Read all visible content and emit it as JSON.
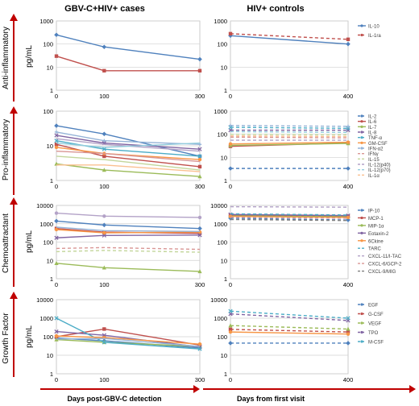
{
  "figure": {
    "left_title": "GBV-C+HIV+ cases",
    "right_title": "HIV+ controls",
    "left_xlabel": "Days post-GBV-C detection",
    "right_xlabel": "Days from first visit",
    "y_unit": "pg/mL"
  },
  "chart_data": [
    {
      "type": "line",
      "row": "Anti-inflammatory",
      "column": "GBV-C+HIV+ cases",
      "yscale": "log",
      "ylim": [
        1,
        1000
      ],
      "yticks": [
        "1",
        "10",
        "100",
        "1000"
      ],
      "x": [
        0,
        100,
        300
      ],
      "xticks": [
        "0",
        "100",
        "300"
      ],
      "series": [
        {
          "name": "IL-10",
          "color": "#4f81bd",
          "marker": "diamond",
          "dashed": false,
          "values": [
            250,
            75,
            22
          ]
        },
        {
          "name": "IL-1ra",
          "color": "#c0504d",
          "marker": "square",
          "dashed": false,
          "values": [
            30,
            7,
            7
          ]
        }
      ]
    },
    {
      "type": "line",
      "row": "Anti-inflammatory",
      "column": "HIV+ controls",
      "yscale": "log",
      "ylim": [
        1,
        1000
      ],
      "yticks": [
        "1",
        "10",
        "100",
        "1000"
      ],
      "x": [
        0,
        400
      ],
      "xticks": [
        "0",
        "400"
      ],
      "series": [
        {
          "name": "IL-10",
          "color": "#4f81bd",
          "marker": "diamond",
          "dashed": false,
          "values": [
            230,
            100
          ]
        },
        {
          "name": "IL-1ra",
          "color": "#c0504d",
          "marker": "square",
          "dashed": true,
          "values": [
            280,
            160
          ]
        }
      ]
    },
    {
      "type": "line",
      "row": "Pro-inflammatory",
      "column": "GBV-C+HIV+ cases",
      "yscale": "log",
      "ylim": [
        1,
        100
      ],
      "yticks": [
        "1",
        "10",
        "100"
      ],
      "x": [
        0,
        100,
        300
      ],
      "xticks": [
        "0",
        "100",
        "300"
      ],
      "series": [
        {
          "name": "IL-2",
          "color": "#4f81bd",
          "marker": "diamond",
          "dashed": false,
          "values": [
            38,
            22,
            5
          ]
        },
        {
          "name": "IL-6",
          "color": "#c0504d",
          "marker": "square",
          "dashed": false,
          "values": [
            11,
            5,
            2.5
          ]
        },
        {
          "name": "IL-7",
          "color": "#9bbb59",
          "marker": "triangle",
          "dashed": false,
          "values": [
            3,
            2,
            1.3
          ]
        },
        {
          "name": "IL-8",
          "color": "#8064a2",
          "marker": "x",
          "dashed": false,
          "values": [
            20,
            12,
            8
          ]
        },
        {
          "name": "TNF-α",
          "color": "#4bacc6",
          "marker": "x",
          "dashed": false,
          "values": [
            14,
            8,
            5
          ]
        },
        {
          "name": "GM-CSF",
          "color": "#f79646",
          "marker": "circle",
          "dashed": false,
          "values": [
            9,
            6,
            4
          ]
        },
        {
          "name": "IFN-α2",
          "color": "#95b3d7",
          "marker": "plus",
          "dashed": false,
          "values": [
            25,
            14,
            11
          ]
        },
        {
          "name": "IFNγ",
          "color": "#d99694",
          "marker": "none",
          "dashed": false,
          "values": [
            7,
            6,
            3.5
          ]
        },
        {
          "name": "IL-15",
          "color": "#c3d69b",
          "marker": "none",
          "dashed": false,
          "values": [
            5,
            4,
            2
          ]
        },
        {
          "name": "IL-12(p40)",
          "color": "#b3a2c7",
          "marker": "none",
          "dashed": false,
          "values": [
            16,
            11,
            7
          ]
        },
        {
          "name": "IL-12(p70)",
          "color": "#93cddd",
          "marker": "none",
          "dashed": false,
          "values": [
            12,
            9,
            12
          ]
        },
        {
          "name": "IL-1α",
          "color": "#fac090",
          "marker": "none",
          "dashed": false,
          "values": [
            2.8,
            2.8,
            1.8
          ]
        }
      ]
    },
    {
      "type": "line",
      "row": "Pro-inflammatory",
      "column": "HIV+ controls",
      "yscale": "log",
      "ylim": [
        1,
        1000
      ],
      "yticks": [
        "1",
        "10",
        "100",
        "1000"
      ],
      "x": [
        0,
        400
      ],
      "xticks": [
        "0",
        "400"
      ],
      "series": [
        {
          "name": "IL-2",
          "color": "#4f81bd",
          "marker": "diamond",
          "dashed": true,
          "values": [
            3.3,
            3.3
          ]
        },
        {
          "name": "IL-6",
          "color": "#c0504d",
          "marker": "square",
          "dashed": false,
          "values": [
            30,
            42
          ]
        },
        {
          "name": "IL-7",
          "color": "#9bbb59",
          "marker": "triangle",
          "dashed": false,
          "values": [
            33,
            40
          ]
        },
        {
          "name": "IL-8",
          "color": "#8064a2",
          "marker": "x",
          "dashed": true,
          "values": [
            150,
            150
          ]
        },
        {
          "name": "TNF-α",
          "color": "#4bacc6",
          "marker": "x",
          "dashed": true,
          "values": [
            200,
            180
          ]
        },
        {
          "name": "GM-CSF",
          "color": "#f79646",
          "marker": "circle",
          "dashed": false,
          "values": [
            38,
            45
          ]
        },
        {
          "name": "IFN-α2",
          "color": "#95b3d7",
          "marker": "plus",
          "dashed": true,
          "values": [
            240,
            220
          ]
        },
        {
          "name": "IFNγ",
          "color": "#d99694",
          "marker": "none",
          "dashed": true,
          "values": [
            75,
            70
          ]
        },
        {
          "name": "IL-15",
          "color": "#c3d69b",
          "marker": "none",
          "dashed": true,
          "values": [
            100,
            95
          ]
        },
        {
          "name": "IL-12(p40)",
          "color": "#b3a2c7",
          "marker": "none",
          "dashed": true,
          "values": [
            55,
            55
          ]
        },
        {
          "name": "IL-12(p70)",
          "color": "#93cddd",
          "marker": "none",
          "dashed": true,
          "values": [
            130,
            120
          ]
        },
        {
          "name": "IL-1α",
          "color": "#fac090",
          "marker": "none",
          "dashed": true,
          "values": [
            85,
            80
          ]
        }
      ]
    },
    {
      "type": "line",
      "row": "Chemoattractant",
      "column": "GBV-C+HIV+ cases",
      "yscale": "log",
      "ylim": [
        1,
        10000
      ],
      "yticks": [
        "1",
        "10",
        "100",
        "1000",
        "10000"
      ],
      "x": [
        0,
        100,
        300
      ],
      "xticks": [
        "0",
        "100",
        "300"
      ],
      "series": [
        {
          "name": "IP-10",
          "color": "#4f81bd",
          "marker": "diamond",
          "dashed": false,
          "values": [
            1400,
            850,
            550
          ]
        },
        {
          "name": "MCP-1",
          "color": "#c0504d",
          "marker": "square",
          "dashed": false,
          "values": [
            550,
            350,
            300
          ]
        },
        {
          "name": "MIP-1α",
          "color": "#9bbb59",
          "marker": "triangle",
          "dashed": false,
          "values": [
            7,
            4,
            2.5
          ]
        },
        {
          "name": "Eotaxin-2",
          "color": "#8064a2",
          "marker": "x",
          "dashed": false,
          "values": [
            170,
            230,
            240
          ]
        },
        {
          "name": "6Ckine",
          "color": "#f79646",
          "marker": "circle",
          "dashed": false,
          "values": [
            480,
            320,
            350
          ]
        },
        {
          "name": "TARC",
          "color": "#95b3d7",
          "marker": "none",
          "dashed": false,
          "values": [
            650,
            420,
            380
          ]
        },
        {
          "name": "CXCL-11/I-TAC",
          "color": "#b3a2c7",
          "marker": "circle",
          "dashed": false,
          "values": [
            3800,
            2600,
            2200
          ]
        },
        {
          "name": "CXCL-6/GCP-2",
          "color": "#d99694",
          "marker": "none",
          "dashed": true,
          "values": [
            45,
            50,
            40
          ]
        },
        {
          "name": "CXCL-9/MIG",
          "color": "#c3d69b",
          "marker": "none",
          "dashed": true,
          "values": [
            30,
            35,
            28
          ]
        }
      ]
    },
    {
      "type": "line",
      "row": "Chemoattractant",
      "column": "HIV+ controls",
      "yscale": "log",
      "ylim": [
        1,
        10000
      ],
      "yticks": [
        "1",
        "10",
        "100",
        "1000",
        "10000"
      ],
      "x": [
        0,
        400
      ],
      "xticks": [
        "0",
        "400"
      ],
      "series": [
        {
          "name": "IP-10",
          "color": "#4f81bd",
          "marker": "diamond",
          "dashed": true,
          "values": [
            2000,
            1600
          ]
        },
        {
          "name": "MCP-1",
          "color": "#c0504d",
          "marker": "square",
          "dashed": false,
          "values": [
            3000,
            2600
          ]
        },
        {
          "name": "MIP-1α",
          "color": "#9bbb59",
          "marker": "triangle",
          "dashed": false,
          "values": [
            2700,
            2400
          ]
        },
        {
          "name": "Eotaxin-2",
          "color": "#8064a2",
          "marker": "x",
          "dashed": false,
          "values": [
            3200,
            2800
          ]
        },
        {
          "name": "6Ckine",
          "color": "#f79646",
          "marker": "circle",
          "dashed": false,
          "values": [
            2500,
            2200
          ]
        },
        {
          "name": "TARC",
          "color": "#4bacc6",
          "marker": "none",
          "dashed": true,
          "values": [
            3500,
            3000
          ]
        },
        {
          "name": "CXCL-11/I-TAC",
          "color": "#b3a2c7",
          "marker": "none",
          "dashed": true,
          "values": [
            8500,
            8000
          ]
        },
        {
          "name": "CXCL-6/GCP-2",
          "color": "#d99694",
          "marker": "none",
          "dashed": true,
          "values": [
            2300,
            2000
          ]
        },
        {
          "name": "CXCL-9/MIG",
          "color": "#7f7f7f",
          "marker": "none",
          "dashed": true,
          "values": [
            1700,
            1500
          ]
        }
      ]
    },
    {
      "type": "line",
      "row": "Growth Factor",
      "column": "GBV-C+HIV+ cases",
      "yscale": "log",
      "ylim": [
        1,
        10000
      ],
      "yticks": [
        "1",
        "10",
        "100",
        "1000",
        "10000"
      ],
      "x": [
        0,
        100,
        300
      ],
      "xticks": [
        "0",
        "100",
        "300"
      ],
      "series": [
        {
          "name": "EGF",
          "color": "#4f81bd",
          "marker": "diamond",
          "dashed": false,
          "values": [
            85,
            60,
            25
          ]
        },
        {
          "name": "G-CSF",
          "color": "#c0504d",
          "marker": "square",
          "dashed": false,
          "values": [
            100,
            260,
            35
          ]
        },
        {
          "name": "VEGF",
          "color": "#9bbb59",
          "marker": "triangle",
          "dashed": false,
          "values": [
            70,
            50,
            30
          ]
        },
        {
          "name": "TPO",
          "color": "#8064a2",
          "marker": "x",
          "dashed": false,
          "values": [
            190,
            120,
            28
          ]
        },
        {
          "name": "M-CSF",
          "color": "#4bacc6",
          "marker": "x",
          "dashed": false,
          "values": [
            1000,
            50,
            22
          ]
        },
        {
          "name": "",
          "color": "#f79646",
          "marker": "circle",
          "dashed": false,
          "values": [
            110,
            90,
            40
          ]
        },
        {
          "name": "",
          "color": "#95b3d7",
          "marker": "none",
          "dashed": false,
          "values": [
            75,
            80,
            30
          ]
        }
      ]
    },
    {
      "type": "line",
      "row": "Growth Factor",
      "column": "HIV+ controls",
      "yscale": "log",
      "ylim": [
        1,
        10000
      ],
      "yticks": [
        "1",
        "10",
        "100",
        "1000",
        "10000"
      ],
      "x": [
        0,
        400
      ],
      "xticks": [
        "0",
        "400"
      ],
      "series": [
        {
          "name": "EGF",
          "color": "#4f81bd",
          "marker": "diamond",
          "dashed": true,
          "values": [
            45,
            45
          ]
        },
        {
          "name": "G-CSF",
          "color": "#c0504d",
          "marker": "square",
          "dashed": true,
          "values": [
            250,
            180
          ]
        },
        {
          "name": "VEGF",
          "color": "#9bbb59",
          "marker": "triangle",
          "dashed": true,
          "values": [
            400,
            260
          ]
        },
        {
          "name": "TPO",
          "color": "#8064a2",
          "marker": "x",
          "dashed": true,
          "values": [
            1700,
            750
          ]
        },
        {
          "name": "M-CSF",
          "color": "#4bacc6",
          "marker": "x",
          "dashed": true,
          "values": [
            2400,
            1000
          ]
        },
        {
          "name": "",
          "color": "#f79646",
          "marker": "circle",
          "dashed": false,
          "values": [
            180,
            140
          ]
        }
      ]
    }
  ]
}
